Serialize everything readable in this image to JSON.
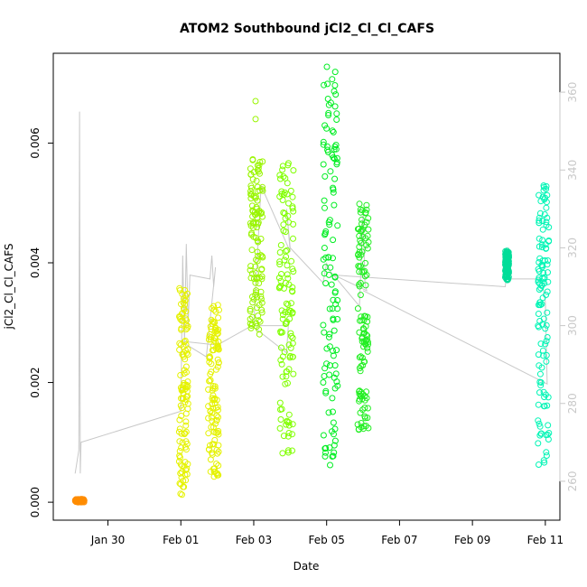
{
  "chart_data": {
    "type": "scatter",
    "title": "ATOM2 Southbound jCl2_Cl_Cl_CAFS",
    "xlabel": "Date",
    "ylabel": "jCl2_Cl_Cl_CAFS",
    "x_ticks": [
      "Jan 30",
      "Feb 01",
      "Feb 03",
      "Feb 05",
      "Feb 07",
      "Feb 09",
      "Feb 11"
    ],
    "x_tick_days": [
      30,
      32,
      34,
      36,
      38,
      40,
      42
    ],
    "xlim_days": [
      28.5,
      42.4
    ],
    "y_ticks": [
      "0.000",
      "0.002",
      "0.004",
      "0.006"
    ],
    "y_tick_values": [
      0.0,
      0.002,
      0.004,
      0.006
    ],
    "ylim": [
      -0.0003,
      0.0075
    ],
    "right_axis": {
      "ticks": [
        "260",
        "280",
        "300",
        "320",
        "340",
        "360"
      ],
      "tick_values": [
        260,
        280,
        300,
        320,
        340,
        360
      ],
      "ylim": [
        250,
        370
      ],
      "color": "#c8c8c8"
    },
    "grid": false,
    "point_groups": [
      {
        "color": "#FF8C00",
        "x_start": 29.1,
        "x_end": 29.35,
        "y_min": 0.0,
        "y_max": 5e-05
      },
      {
        "color": "#E5F200",
        "x_start": 31.95,
        "x_end": 32.2,
        "y_min": 0.0001,
        "y_max": 0.0036
      },
      {
        "color": "#E5F200",
        "x_start": 32.75,
        "x_end": 33.05,
        "y_min": 0.0004,
        "y_max": 0.0033
      },
      {
        "color": "#99F500",
        "x_start": 33.9,
        "x_end": 34.25,
        "y_min": 0.0028,
        "y_max": 0.0058
      },
      {
        "color": "#80FF00",
        "x_start": 34.7,
        "x_end": 35.1,
        "y_min": 0.0008,
        "y_max": 0.0058
      },
      {
        "color": "#00EE22",
        "x_start": 35.9,
        "x_end": 36.3,
        "y_min": 0.0006,
        "y_max": 0.0073
      },
      {
        "color": "#22EE22",
        "x_start": 36.85,
        "x_end": 37.15,
        "y_min": 0.0012,
        "y_max": 0.005
      },
      {
        "color": "#00DD99",
        "x_start": 40.9,
        "x_end": 41.0,
        "y_min": 0.0037,
        "y_max": 0.0042
      },
      {
        "color": "#00F5B5",
        "x_start": 41.8,
        "x_end": 42.1,
        "y_min": 0.0006,
        "y_max": 0.0053
      }
    ],
    "outliers": [
      {
        "x": 34.05,
        "y": 0.0067,
        "color": "#99F500"
      },
      {
        "x": 34.05,
        "y": 0.0064,
        "color": "#99F500"
      },
      {
        "x": 36.05,
        "y": 0.0065,
        "color": "#00EE22"
      },
      {
        "x": 34.95,
        "y": 0.0011,
        "color": "#80FF00"
      },
      {
        "x": 33.0,
        "y": 0.00045,
        "color": "#E5F200"
      }
    ],
    "line_series": {
      "color": "#c8c8c8",
      "axis": "right",
      "points": [
        [
          29.1,
          262
        ],
        [
          29.2,
          268
        ],
        [
          29.22,
          355
        ],
        [
          29.24,
          262
        ],
        [
          29.26,
          270
        ],
        [
          32.0,
          278
        ],
        [
          32.05,
          318
        ],
        [
          32.1,
          296
        ],
        [
          32.15,
          321
        ],
        [
          32.2,
          300
        ],
        [
          32.25,
          313
        ],
        [
          32.8,
          312
        ],
        [
          32.85,
          318
        ],
        [
          32.9,
          310
        ],
        [
          32.95,
          315
        ],
        [
          32.7,
          292
        ],
        [
          32.0,
          296
        ],
        [
          33.0,
          295
        ],
        [
          33.95,
          300
        ],
        [
          34.9,
          293
        ],
        [
          34.95,
          300
        ],
        [
          34.0,
          300
        ],
        [
          34.2,
          336
        ],
        [
          35.0,
          319
        ],
        [
          34.9,
          330
        ],
        [
          35.0,
          320
        ],
        [
          35.9,
          311
        ],
        [
          36.0,
          316
        ],
        [
          36.1,
          314
        ],
        [
          36.9,
          305
        ],
        [
          37.0,
          329
        ],
        [
          37.05,
          311
        ],
        [
          37.1,
          309
        ],
        [
          36.2,
          313
        ],
        [
          40.9,
          310
        ],
        [
          41.0,
          320
        ],
        [
          41.05,
          312
        ],
        [
          41.9,
          312
        ],
        [
          42.0,
          306
        ],
        [
          42.05,
          285
        ],
        [
          37.0,
          309
        ]
      ]
    }
  }
}
